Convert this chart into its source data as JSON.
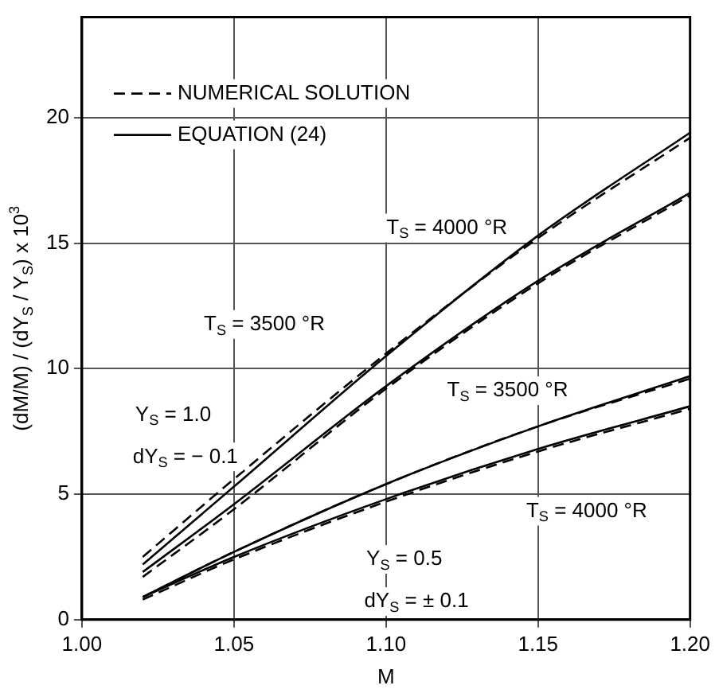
{
  "chart_data": {
    "type": "line",
    "xlabel": "M",
    "ylabel": "(dM/M) / (dY$_{S}$ / Y$_{S}$) x 10$^{3}$",
    "x": [
      1.02,
      1.05,
      1.1,
      1.15,
      1.2
    ],
    "series": [
      {
        "name": "NUMERICAL SOLUTION",
        "color": "#000000",
        "line_style": "dashed",
        "values": [
          2.5,
          5.6,
          10.6,
          15.2,
          19.2
        ]
      },
      {
        "color": "#000000",
        "line_style": "dashed",
        "values": [
          1.7,
          4.4,
          9.2,
          13.4,
          16.9
        ]
      },
      {
        "color": "#000000",
        "line_style": "dashed",
        "values": [
          0.9,
          2.7,
          5.4,
          7.7,
          9.6
        ]
      },
      {
        "color": "#000000",
        "line_style": "dashed",
        "values": [
          0.8,
          2.4,
          4.7,
          6.7,
          8.4
        ]
      },
      {
        "name": "EQUATION (24)",
        "color": "#000000",
        "line_style": "solid",
        "values": [
          2.2,
          5.3,
          10.5,
          15.3,
          19.4
        ]
      },
      {
        "color": "#000000",
        "line_style": "solid",
        "values": [
          1.9,
          4.6,
          9.3,
          13.5,
          17.0
        ]
      },
      {
        "color": "#000000",
        "line_style": "solid",
        "values": [
          0.9,
          2.7,
          5.4,
          7.7,
          9.7
        ]
      },
      {
        "color": "#000000",
        "line_style": "solid",
        "values": [
          0.9,
          2.5,
          4.8,
          6.8,
          8.5
        ]
      }
    ],
    "xlim": [
      1.0,
      1.2
    ],
    "xticks": [
      {
        "value": 1.0,
        "label": "1.00"
      },
      {
        "value": 1.05,
        "label": "1.05"
      },
      {
        "value": 1.1,
        "label": "1.10"
      },
      {
        "value": 1.15,
        "label": "1.15"
      },
      {
        "value": 1.2,
        "label": "1.20"
      }
    ],
    "ylim": [
      0,
      24
    ],
    "yticks": [
      0,
      5,
      10,
      15,
      20
    ],
    "grid": true,
    "legend": "top left",
    "marker": "none",
    "annotations": [
      "T$_{S}$ = 4000 °R",
      "T$_{S}$ = 3500 °R",
      "T$_{S}$ = 3500 °R",
      "T$_{S}$ = 4000 °R",
      "Y$_{S}$ = 1.0",
      "dY$_{S}$ = − 0.1",
      "Y$_{S}$ = 0.5",
      "dY$_{S}$ = ± 0.1"
    ]
  }
}
